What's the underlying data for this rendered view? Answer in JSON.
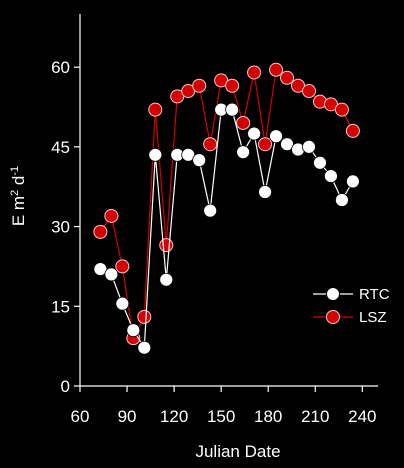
{
  "chart_data": {
    "type": "line",
    "title": "",
    "xlabel": "Julian Date",
    "ylabel": "E m² d⁻¹",
    "xlim": [
      60,
      250
    ],
    "ylim": [
      0,
      70
    ],
    "x_ticks": [
      60,
      90,
      120,
      150,
      180,
      210,
      240
    ],
    "y_ticks": [
      0,
      15,
      30,
      45,
      60
    ],
    "legend_position": "lower-right",
    "grid": false,
    "series": [
      {
        "name": "RTC",
        "color": "#ffffff",
        "marker": "circle",
        "x": [
          73,
          80,
          87,
          94,
          101,
          108,
          115,
          122,
          129,
          136,
          143,
          150,
          157,
          164,
          171,
          178,
          185,
          192,
          199,
          206,
          213,
          220,
          227,
          234
        ],
        "y": [
          22,
          21,
          15.5,
          10.5,
          7.2,
          43.5,
          20,
          43.5,
          43.5,
          42.5,
          33,
          52,
          52,
          44,
          47.5,
          36.5,
          47,
          45.5,
          44.5,
          45,
          42,
          39.5,
          35,
          38.5
        ]
      },
      {
        "name": "LSZ",
        "color": "#d40000",
        "marker": "circle",
        "x": [
          73,
          80,
          87,
          94,
          101,
          108,
          115,
          122,
          129,
          136,
          143,
          150,
          157,
          164,
          171,
          178,
          185,
          192,
          199,
          206,
          213,
          220,
          227,
          234
        ],
        "y": [
          29,
          32,
          22.5,
          9,
          13,
          52,
          26.5,
          54.5,
          55.5,
          56.5,
          45.5,
          57.5,
          56.5,
          49.5,
          59,
          45.5,
          59.5,
          58,
          56.5,
          55.5,
          53.5,
          53,
          52,
          48
        ]
      }
    ]
  }
}
